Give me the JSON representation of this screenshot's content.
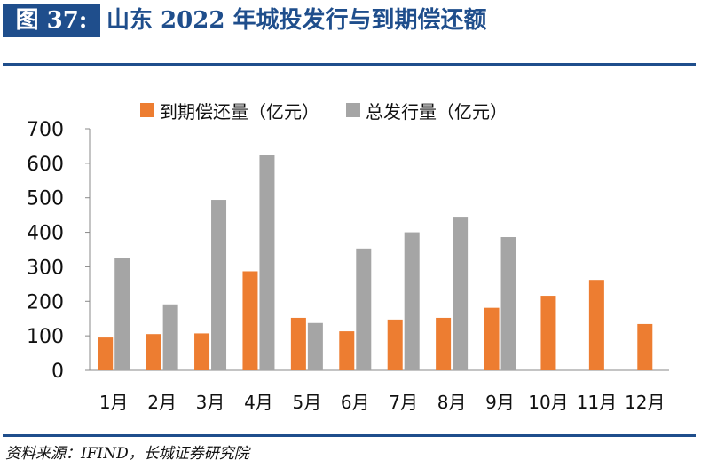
{
  "header": {
    "figure_label": "图 37:",
    "title": "山东 2022 年城投发行与到期偿还额"
  },
  "source": "资料来源：IFIND，长城证券研究院",
  "colors": {
    "accent": "#1f4e8c",
    "maturity": "#ed7d31",
    "issuance": "#a5a5a5"
  },
  "chart_data": {
    "type": "bar",
    "categories": [
      "1月",
      "2月",
      "3月",
      "4月",
      "5月",
      "6月",
      "7月",
      "8月",
      "9月",
      "10月",
      "11月",
      "12月"
    ],
    "series": [
      {
        "name": "到期偿还量（亿元）",
        "color": "#ed7d31",
        "values": [
          95,
          105,
          107,
          287,
          152,
          113,
          147,
          152,
          181,
          216,
          262,
          134
        ]
      },
      {
        "name": "总发行量（亿元）",
        "color": "#a5a5a5",
        "values": [
          325,
          191,
          494,
          625,
          137,
          353,
          400,
          445,
          386,
          null,
          null,
          null
        ]
      }
    ],
    "y_ticks": [
      "0",
      "100",
      "200",
      "300",
      "400",
      "500",
      "600",
      "700"
    ],
    "ylim": [
      0,
      700
    ],
    "legend_position": "top",
    "grid": false
  }
}
